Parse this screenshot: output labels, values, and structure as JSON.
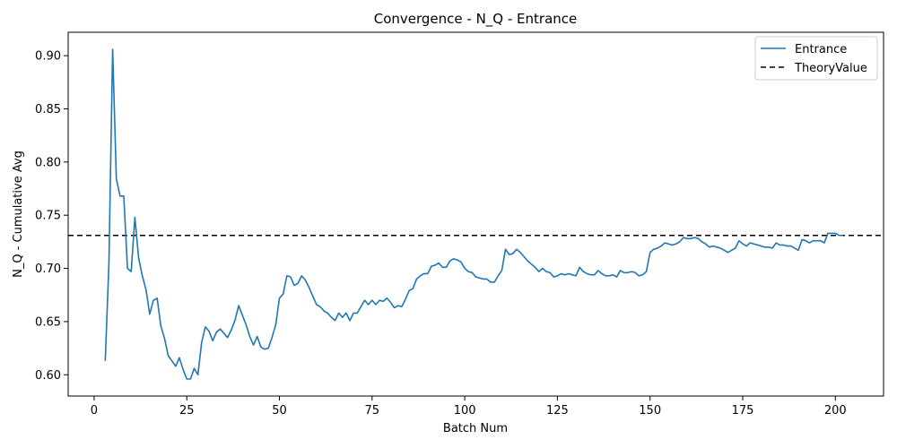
{
  "chart_data": {
    "type": "line",
    "title": "Convergence - N_Q - Entrance",
    "xlabel": "Batch Num",
    "ylabel": "N_Q - Cumulative Avg",
    "xlim": [
      -7,
      213
    ],
    "ylim": [
      0.58,
      0.922
    ],
    "x_ticks": [
      0,
      25,
      50,
      75,
      100,
      125,
      150,
      175,
      200
    ],
    "y_ticks": [
      0.6,
      0.65,
      0.7,
      0.75,
      0.8,
      0.85,
      0.9
    ],
    "x_tick_labels": [
      "0",
      "25",
      "50",
      "75",
      "100",
      "125",
      "150",
      "175",
      "200"
    ],
    "y_tick_labels": [
      "0.60",
      "0.65",
      "0.70",
      "0.75",
      "0.80",
      "0.85",
      "0.90"
    ],
    "grid": false,
    "legend_position": "top-right",
    "series": [
      {
        "name": "Entrance",
        "color": "#1f77b4",
        "x": [
          3,
          4,
          5,
          6,
          7,
          8,
          9,
          10,
          11,
          12,
          13,
          14,
          15,
          16,
          17,
          18,
          19,
          20,
          21,
          22,
          23,
          24,
          25,
          26,
          27,
          28,
          29,
          30,
          31,
          32,
          33,
          34,
          35,
          36,
          37,
          38,
          39,
          40,
          41,
          42,
          43,
          44,
          45,
          46,
          47,
          48,
          49,
          50,
          51,
          52,
          53,
          54,
          55,
          56,
          57,
          58,
          59,
          60,
          61,
          62,
          63,
          64,
          65,
          66,
          67,
          68,
          69,
          70,
          71,
          72,
          73,
          74,
          75,
          76,
          77,
          78,
          79,
          80,
          81,
          82,
          83,
          84,
          85,
          86,
          87,
          88,
          89,
          90,
          91,
          92,
          93,
          94,
          95,
          96,
          97,
          98,
          99,
          100,
          101,
          102,
          103,
          104,
          105,
          106,
          107,
          108,
          109,
          110,
          111,
          112,
          113,
          114,
          115,
          116,
          117,
          118,
          119,
          120,
          121,
          122,
          123,
          124,
          125,
          126,
          127,
          128,
          129,
          130,
          131,
          132,
          133,
          134,
          135,
          136,
          137,
          138,
          139,
          140,
          141,
          142,
          143,
          144,
          145,
          146,
          147,
          148,
          149,
          150,
          151,
          152,
          153,
          154,
          155,
          156,
          157,
          158,
          159,
          160,
          161,
          162,
          163,
          164,
          165,
          166,
          167,
          168,
          169,
          170,
          171,
          172,
          173,
          174,
          175,
          176,
          177,
          178,
          179,
          180,
          181,
          182,
          183,
          184,
          185,
          186,
          187,
          188,
          189,
          190,
          191,
          192,
          193,
          194,
          195,
          196,
          197,
          198,
          199,
          200,
          201,
          202
        ],
        "y": [
          0.613,
          0.705,
          0.906,
          0.784,
          0.768,
          0.768,
          0.7,
          0.697,
          0.748,
          0.71,
          0.693,
          0.68,
          0.657,
          0.67,
          0.672,
          0.646,
          0.634,
          0.618,
          0.613,
          0.608,
          0.616,
          0.605,
          0.596,
          0.596,
          0.606,
          0.6,
          0.63,
          0.645,
          0.641,
          0.632,
          0.64,
          0.643,
          0.639,
          0.635,
          0.642,
          0.651,
          0.665,
          0.656,
          0.647,
          0.636,
          0.628,
          0.636,
          0.626,
          0.624,
          0.625,
          0.635,
          0.647,
          0.672,
          0.676,
          0.693,
          0.692,
          0.684,
          0.686,
          0.693,
          0.689,
          0.682,
          0.674,
          0.666,
          0.664,
          0.66,
          0.658,
          0.654,
          0.651,
          0.658,
          0.654,
          0.658,
          0.651,
          0.658,
          0.658,
          0.664,
          0.67,
          0.666,
          0.67,
          0.666,
          0.67,
          0.669,
          0.672,
          0.668,
          0.663,
          0.665,
          0.664,
          0.671,
          0.679,
          0.681,
          0.69,
          0.693,
          0.695,
          0.695,
          0.702,
          0.703,
          0.705,
          0.701,
          0.701,
          0.707,
          0.709,
          0.708,
          0.706,
          0.7,
          0.697,
          0.696,
          0.692,
          0.691,
          0.69,
          0.69,
          0.687,
          0.687,
          0.693,
          0.698,
          0.718,
          0.713,
          0.714,
          0.718,
          0.715,
          0.711,
          0.707,
          0.704,
          0.701,
          0.697,
          0.7,
          0.697,
          0.696,
          0.692,
          0.693,
          0.695,
          0.694,
          0.695,
          0.694,
          0.693,
          0.701,
          0.697,
          0.695,
          0.694,
          0.694,
          0.698,
          0.695,
          0.693,
          0.693,
          0.694,
          0.692,
          0.698,
          0.696,
          0.696,
          0.697,
          0.696,
          0.693,
          0.694,
          0.697,
          0.715,
          0.718,
          0.719,
          0.721,
          0.724,
          0.723,
          0.722,
          0.723,
          0.725,
          0.729,
          0.728,
          0.728,
          0.729,
          0.728,
          0.725,
          0.723,
          0.72,
          0.721,
          0.72,
          0.719,
          0.717,
          0.715,
          0.717,
          0.719,
          0.726,
          0.723,
          0.721,
          0.724,
          0.723,
          0.722,
          0.721,
          0.72,
          0.72,
          0.719,
          0.724,
          0.722,
          0.722,
          0.721,
          0.721,
          0.719,
          0.717,
          0.727,
          0.726,
          0.724,
          0.726,
          0.726,
          0.726,
          0.724,
          0.733,
          0.733,
          0.733,
          0.731,
          0.731
        ]
      },
      {
        "name": "TheoryValue",
        "color": "#000000",
        "style": "dashed",
        "constant": 0.731
      }
    ]
  }
}
